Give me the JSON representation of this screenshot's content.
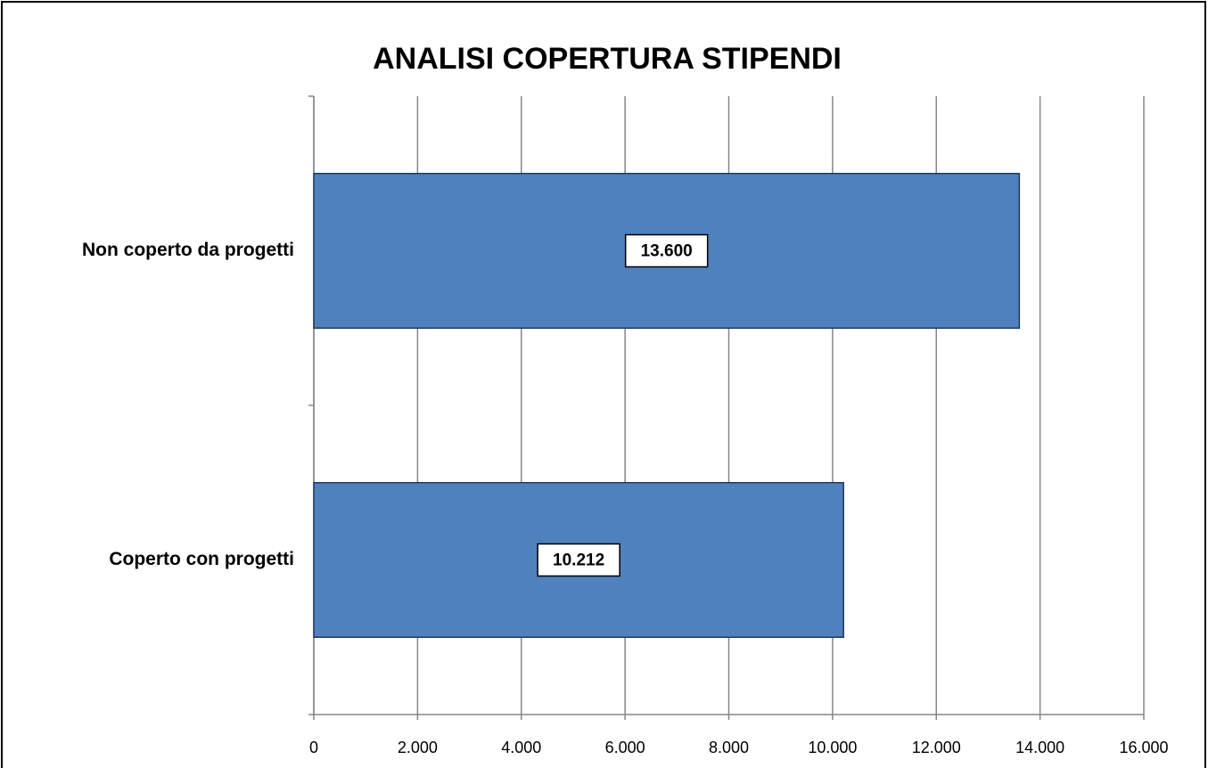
{
  "chart_data": {
    "type": "bar",
    "orientation": "horizontal",
    "title": "ANALISI COPERTURA STIPENDI",
    "categories": [
      "Non coperto da progetti",
      "Coperto con progetti"
    ],
    "values": [
      13600,
      10212
    ],
    "value_labels": [
      "13.600",
      "10.212"
    ],
    "color": "#4f81bd",
    "xlim": [
      0,
      16000
    ],
    "xticks": [
      0,
      {
        "value": 2000,
        "label": "2.000"
      },
      {
        "value": 4000,
        "label": "4.000"
      },
      {
        "value": 6000,
        "label": "6.000"
      },
      {
        "value": 8000,
        "label": "8.000"
      },
      {
        "value": 10000,
        "label": "10.000"
      },
      {
        "value": 12000,
        "label": "12.000"
      },
      {
        "value": 14000,
        "label": "14.000"
      },
      {
        "value": 16000,
        "label": "16.000"
      }
    ],
    "grid": true
  }
}
